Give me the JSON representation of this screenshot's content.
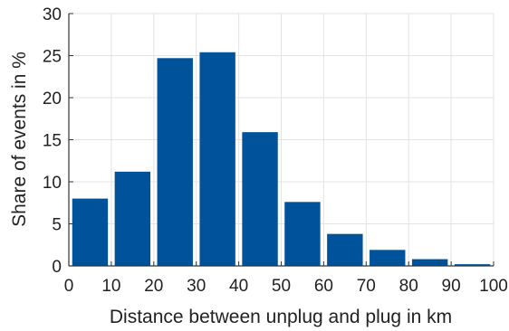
{
  "chart_data": {
    "type": "bar",
    "title": "",
    "xlabel": "Distance between unplug and plug in km",
    "ylabel": "Share of events in %",
    "xlim": [
      0,
      100
    ],
    "ylim": [
      0,
      30
    ],
    "x_ticks": [
      0,
      10,
      20,
      30,
      40,
      50,
      60,
      70,
      80,
      90,
      100
    ],
    "y_ticks": [
      0,
      5,
      10,
      15,
      20,
      25,
      30
    ],
    "grid": true,
    "legend": "none",
    "bar_color": "#00539b",
    "bins": [
      [
        0,
        10
      ],
      [
        10,
        20
      ],
      [
        20,
        30
      ],
      [
        30,
        40
      ],
      [
        40,
        50
      ],
      [
        50,
        60
      ],
      [
        60,
        70
      ],
      [
        70,
        80
      ],
      [
        80,
        90
      ],
      [
        90,
        100
      ]
    ],
    "values": [
      8.0,
      11.2,
      24.7,
      25.4,
      15.9,
      7.6,
      3.8,
      1.9,
      0.8,
      0.2
    ]
  }
}
